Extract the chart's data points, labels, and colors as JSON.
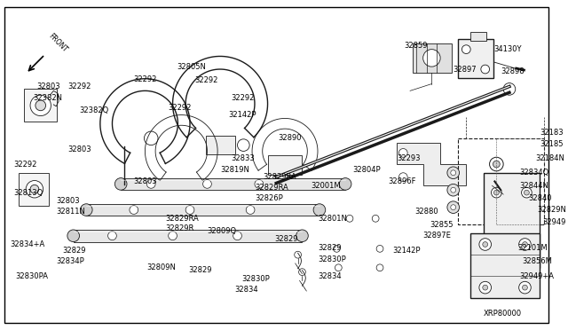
{
  "bg_color": "#ffffff",
  "fig_width": 6.4,
  "fig_height": 3.72,
  "dpi": 100,
  "border": [
    0.008,
    0.008,
    0.992,
    0.992
  ]
}
